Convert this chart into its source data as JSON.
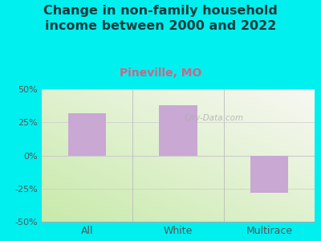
{
  "title": "Change in non-family household\nincome between 2000 and 2022",
  "subtitle": "Pineville, MO",
  "categories": [
    "All",
    "White",
    "Multirace"
  ],
  "values": [
    32,
    38,
    -28
  ],
  "bar_color": "#c9a8d4",
  "background_color": "#00efef",
  "plot_bg_color_left": "#d8f0c0",
  "plot_bg_color_right": "#f5f5f0",
  "title_color": "#1a3a3a",
  "subtitle_color": "#cc6688",
  "tick_color": "#555555",
  "ylim": [
    -50,
    50
  ],
  "yticks": [
    -50,
    -25,
    0,
    25,
    50
  ],
  "watermark": "City-Data.com",
  "title_fontsize": 11.5,
  "subtitle_fontsize": 10
}
